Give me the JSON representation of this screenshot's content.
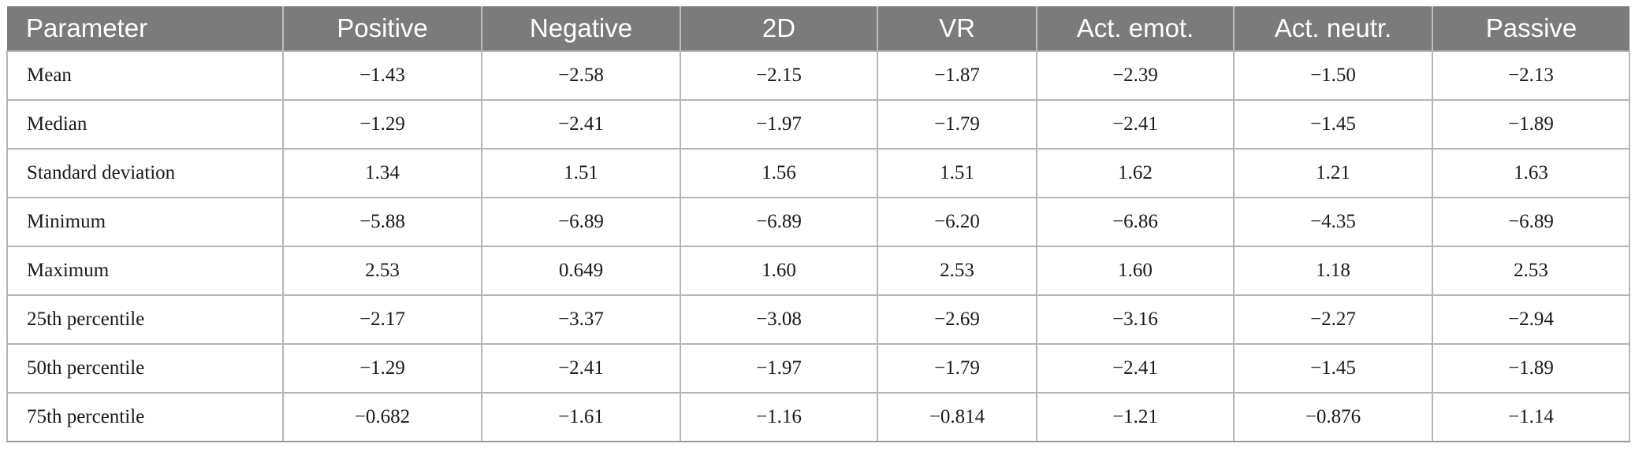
{
  "table": {
    "columns": [
      "Parameter",
      "Positive",
      "Negative",
      "2D",
      "VR",
      "Act. emot.",
      "Act. neutr.",
      "Passive"
    ],
    "rows": [
      [
        "Mean",
        "−1.43",
        "−2.58",
        "−2.15",
        "−1.87",
        "−2.39",
        "−1.50",
        "−2.13"
      ],
      [
        "Median",
        "−1.29",
        "−2.41",
        "−1.97",
        "−1.79",
        "−2.41",
        "−1.45",
        "−1.89"
      ],
      [
        "Standard deviation",
        "1.34",
        "1.51",
        "1.56",
        "1.51",
        "1.62",
        "1.21",
        "1.63"
      ],
      [
        "Minimum",
        "−5.88",
        "−6.89",
        "−6.89",
        "−6.20",
        "−6.86",
        "−4.35",
        "−6.89"
      ],
      [
        "Maximum",
        "2.53",
        "0.649",
        "1.60",
        "2.53",
        "1.60",
        "1.18",
        "2.53"
      ],
      [
        "25th percentile",
        "−2.17",
        "−3.37",
        "−3.08",
        "−2.69",
        "−3.16",
        "−2.27",
        "−2.94"
      ],
      [
        "50th percentile",
        "−1.29",
        "−2.41",
        "−1.97",
        "−1.79",
        "−2.41",
        "−1.45",
        "−1.89"
      ],
      [
        "75th percentile",
        "−0.682",
        "−1.61",
        "−1.16",
        "−0.814",
        "−1.21",
        "−0.876",
        "−1.14"
      ]
    ]
  }
}
